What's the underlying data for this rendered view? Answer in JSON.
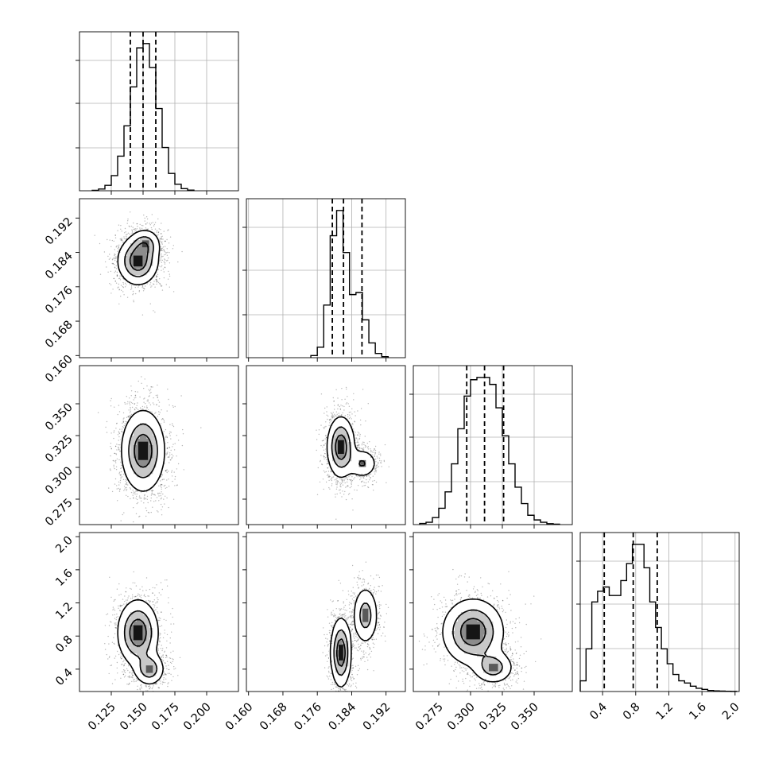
{
  "chart_data": {
    "type": "corner",
    "parameters": [
      {
        "range": [
          0.1,
          0.225
        ],
        "ticks": [
          0.125,
          0.15,
          0.175,
          0.2
        ],
        "tick_labels": [
          "0.125",
          "0.150",
          "0.175",
          "0.200"
        ],
        "quantiles": [
          0.14,
          0.15,
          0.16
        ]
      },
      {
        "range": [
          0.1595,
          0.1965
        ],
        "ticks": [
          0.16,
          0.168,
          0.176,
          0.184,
          0.192
        ],
        "tick_labels": [
          "0.160",
          "0.168",
          "0.176",
          "0.184",
          "0.192"
        ],
        "quantiles": [
          0.1795,
          0.1821,
          0.1864
        ]
      },
      {
        "range": [
          0.255,
          0.38
        ],
        "ticks": [
          0.275,
          0.3,
          0.325,
          0.35
        ],
        "tick_labels": [
          "0.275",
          "0.300",
          "0.325",
          "0.350"
        ],
        "quantiles": [
          0.297,
          0.311,
          0.326
        ]
      },
      {
        "range": [
          0.13,
          2.05
        ],
        "ticks": [
          0.4,
          0.8,
          1.2,
          1.6,
          2.0
        ],
        "tick_labels": [
          "0.4",
          "0.8",
          "1.2",
          "1.6",
          "2.0"
        ],
        "quantiles": [
          0.42,
          0.77,
          1.06
        ]
      }
    ],
    "histograms": [
      {
        "param": 0,
        "bins": [
          0.11,
          0.115,
          0.12,
          0.125,
          0.13,
          0.135,
          0.14,
          0.145,
          0.15,
          0.155,
          0.16,
          0.165,
          0.17,
          0.175,
          0.18,
          0.185,
          0.19
        ],
        "counts": [
          0.2,
          0.8,
          2.5,
          7,
          16,
          30,
          48,
          66,
          68,
          57,
          38,
          20,
          8,
          3,
          1,
          0.3
        ]
      },
      {
        "param": 1,
        "bins": [
          0.1745,
          0.176,
          0.1775,
          0.179,
          0.1805,
          0.182,
          0.1835,
          0.185,
          0.1865,
          0.188,
          0.1895,
          0.191,
          0.1925
        ],
        "counts": [
          1,
          5,
          25,
          58,
          70,
          50,
          30,
          31,
          18,
          7,
          2,
          0.5
        ]
      },
      {
        "param": 2,
        "bins": [
          0.26,
          0.265,
          0.27,
          0.275,
          0.28,
          0.285,
          0.29,
          0.295,
          0.3,
          0.305,
          0.31,
          0.315,
          0.32,
          0.325,
          0.33,
          0.335,
          0.34,
          0.345,
          0.35,
          0.355,
          0.36,
          0.365,
          0.37
        ],
        "counts": [
          0.5,
          1,
          3,
          7,
          14,
          26,
          41,
          55,
          62,
          63,
          63,
          60,
          50,
          38,
          26,
          16,
          9,
          4,
          2,
          1,
          0.4,
          0.2
        ]
      },
      {
        "param": 3,
        "bins": [
          0.13,
          0.2,
          0.27,
          0.34,
          0.41,
          0.48,
          0.55,
          0.62,
          0.69,
          0.76,
          0.83,
          0.9,
          0.97,
          1.04,
          1.11,
          1.18,
          1.25,
          1.32,
          1.39,
          1.46,
          1.53,
          1.6,
          1.67,
          1.74,
          1.81,
          1.88,
          1.95,
          2.02
        ],
        "counts": [
          5,
          20,
          42,
          47,
          49,
          45,
          45,
          52,
          60,
          69,
          69,
          58,
          42,
          30,
          20,
          13,
          8,
          5,
          4,
          2.5,
          1.5,
          1,
          0.5,
          0.3,
          0.2,
          0.1,
          0.05
        ]
      }
    ],
    "density_modes": [
      {
        "x": 0,
        "y": 1,
        "modes": [
          {
            "x": 0.146,
            "y": 0.182,
            "sx": 0.008,
            "sy": 0.0028,
            "w": 1.0
          },
          {
            "x": 0.152,
            "y": 0.186,
            "sx": 0.006,
            "sy": 0.0018,
            "w": 0.5
          }
        ]
      },
      {
        "x": 0,
        "y": 2,
        "modes": [
          {
            "x": 0.15,
            "y": 0.313,
            "sx": 0.0085,
            "sy": 0.016,
            "w": 1.0
          }
        ]
      },
      {
        "x": 1,
        "y": 2,
        "modes": [
          {
            "x": 0.1815,
            "y": 0.316,
            "sx": 0.0016,
            "sy": 0.012,
            "w": 1.0
          },
          {
            "x": 0.1865,
            "y": 0.303,
            "sx": 0.0018,
            "sy": 0.006,
            "w": 0.45
          }
        ]
      },
      {
        "x": 0,
        "y": 3,
        "modes": [
          {
            "x": 0.146,
            "y": 0.84,
            "sx": 0.008,
            "sy": 0.2,
            "w": 1.0
          },
          {
            "x": 0.155,
            "y": 0.4,
            "sx": 0.006,
            "sy": 0.1,
            "w": 0.65
          }
        ]
      },
      {
        "x": 1,
        "y": 3,
        "modes": [
          {
            "x": 0.1815,
            "y": 0.6,
            "sx": 0.0012,
            "sy": 0.21,
            "w": 1.0
          },
          {
            "x": 0.1872,
            "y": 1.05,
            "sx": 0.0015,
            "sy": 0.18,
            "w": 0.6
          }
        ]
      },
      {
        "x": 2,
        "y": 3,
        "modes": [
          {
            "x": 0.302,
            "y": 0.85,
            "sx": 0.012,
            "sy": 0.2,
            "w": 1.0
          },
          {
            "x": 0.318,
            "y": 0.42,
            "sx": 0.008,
            "sy": 0.1,
            "w": 0.6
          }
        ]
      }
    ],
    "grid": true,
    "legend": "none"
  }
}
